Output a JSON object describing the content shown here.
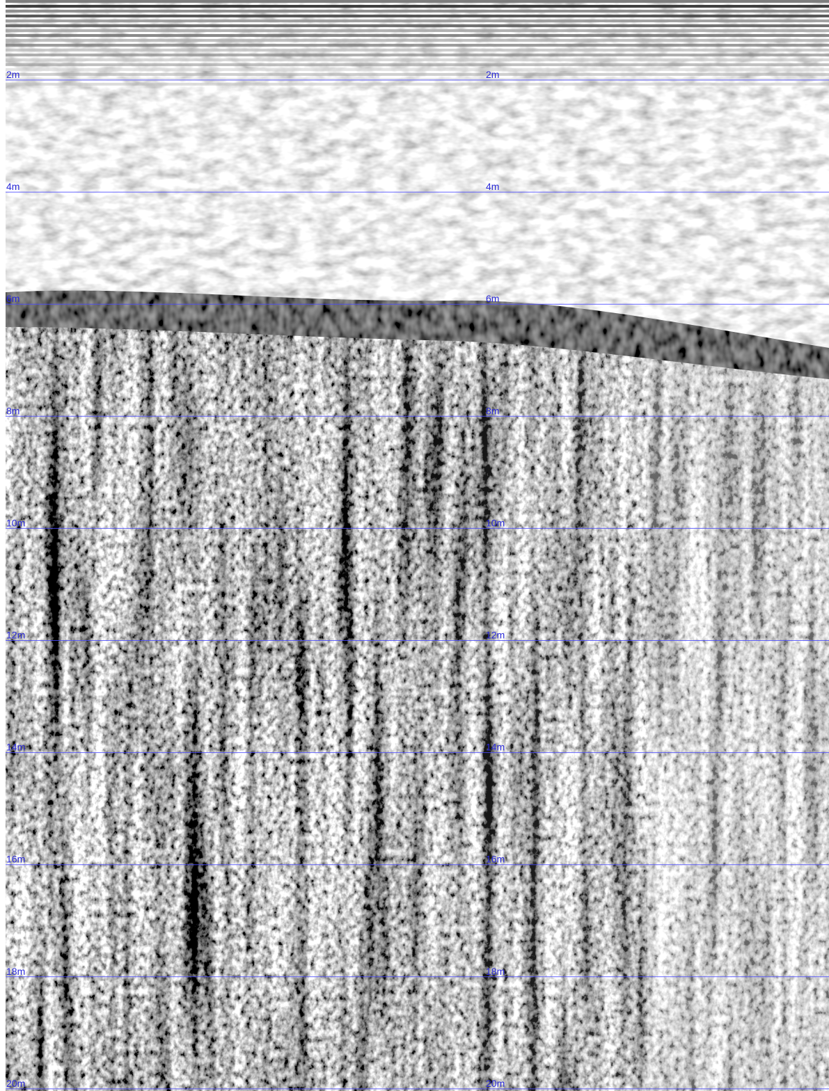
{
  "depth_scale": {
    "columns": [
      {
        "labels": [
          "2m",
          "4m",
          "6m",
          "8m",
          "10m",
          "12m",
          "14m",
          "16m",
          "18m",
          "20m"
        ]
      },
      {
        "labels": [
          "2m",
          "4m",
          "6m",
          "8m",
          "10m",
          "12m",
          "14m",
          "16m",
          "18m",
          "20m"
        ]
      }
    ]
  }
}
